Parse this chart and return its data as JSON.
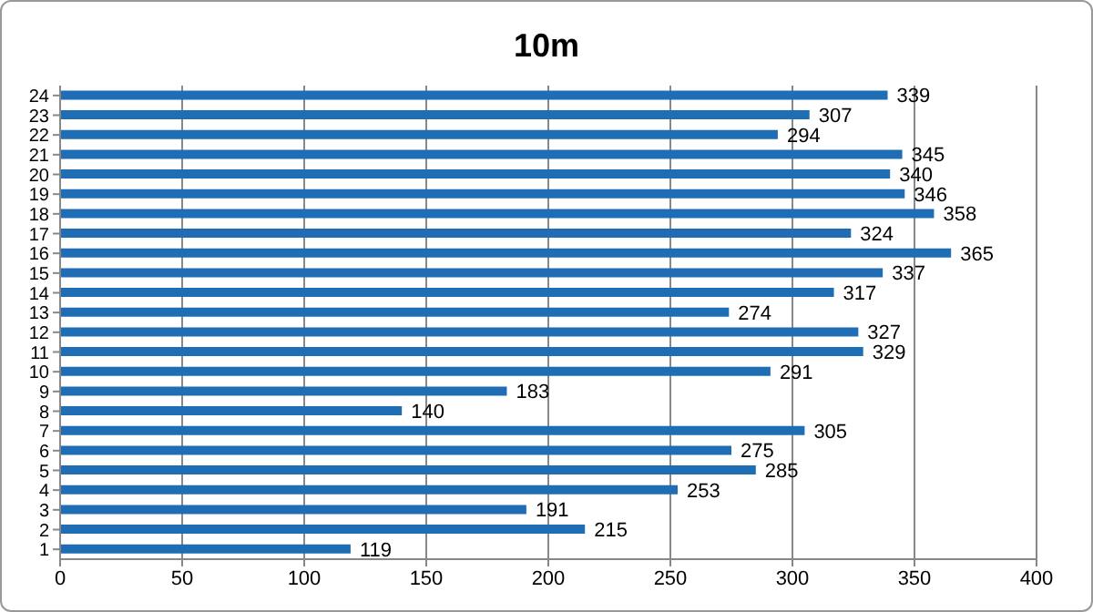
{
  "chart_data": {
    "type": "bar",
    "title": "10m",
    "orientation": "horizontal",
    "categories": [
      "24",
      "23",
      "22",
      "21",
      "20",
      "19",
      "18",
      "17",
      "16",
      "15",
      "14",
      "13",
      "12",
      "11",
      "10",
      "9",
      "8",
      "7",
      "6",
      "5",
      "4",
      "3",
      "2",
      "1"
    ],
    "values": [
      339,
      307,
      294,
      345,
      340,
      346,
      358,
      324,
      365,
      337,
      317,
      274,
      327,
      329,
      291,
      183,
      140,
      305,
      275,
      285,
      253,
      191,
      215,
      119
    ],
    "color": "#1f6eb5",
    "xlim": [
      0,
      400
    ],
    "xticks": [
      0,
      50,
      100,
      150,
      200,
      250,
      300,
      350,
      400
    ],
    "grid": "x",
    "data_labels": true
  }
}
